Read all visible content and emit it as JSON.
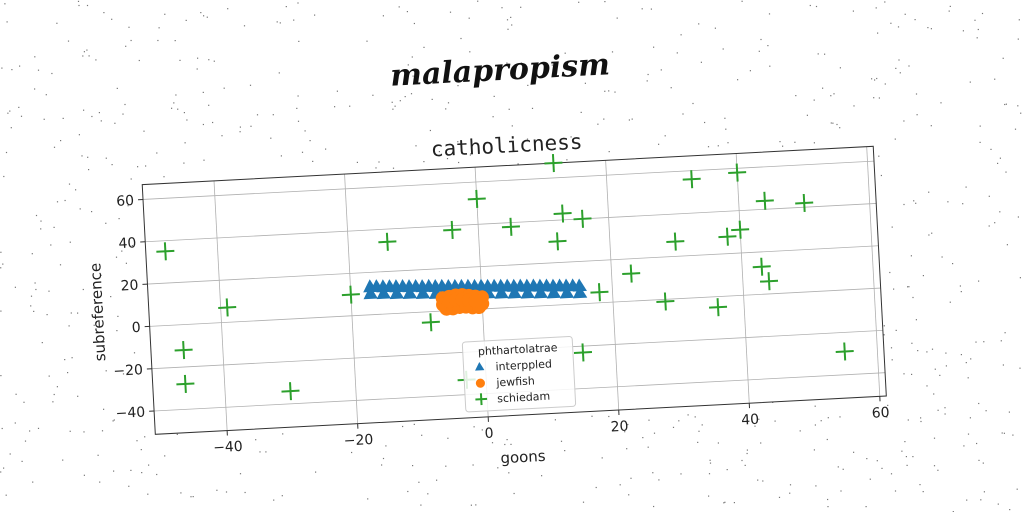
{
  "chart_data": {
    "type": "scatter",
    "suptitle": "malapropism",
    "title": "catholicness",
    "xlabel": "goons",
    "ylabel": "subreference",
    "xlim": [
      -51,
      61
    ],
    "ylim": [
      -51,
      67
    ],
    "xticks": [
      -40,
      -20,
      0,
      20,
      40,
      60
    ],
    "yticks": [
      -40,
      -20,
      0,
      20,
      40,
      60
    ],
    "grid": true,
    "legend": {
      "title": "phthartolatrae",
      "placement": "lower center"
    },
    "series": [
      {
        "name": "interppled",
        "marker": "triangle",
        "color": "#1f77b4",
        "x": [
          -17,
          -16,
          -15,
          -14,
          -13,
          -12,
          -11,
          -10,
          -9,
          -8,
          -7,
          -6,
          -5,
          -4,
          -3,
          -2,
          -1,
          0,
          1,
          2,
          3,
          4,
          5,
          6,
          7,
          8,
          9,
          10,
          11,
          12,
          13,
          14,
          15,
          -17,
          -15,
          -13,
          -11,
          -9,
          -7,
          -5,
          -3,
          -1,
          1,
          3,
          5,
          7,
          9,
          11,
          13,
          15
        ],
        "y": [
          13.0,
          12.9,
          12.7,
          12.6,
          12.4,
          12.3,
          12.1,
          12.0,
          11.8,
          11.7,
          11.5,
          11.4,
          11.2,
          11.1,
          10.9,
          10.8,
          10.6,
          10.5,
          10.3,
          10.2,
          10.0,
          9.9,
          9.7,
          9.6,
          9.4,
          9.3,
          9.1,
          9.0,
          8.8,
          8.7,
          8.5,
          8.4,
          8.2,
          9.8,
          9.5,
          9.2,
          8.9,
          8.6,
          8.3,
          8.0,
          7.7,
          7.4,
          7.1,
          6.8,
          6.5,
          6.2,
          5.9,
          5.6,
          5.3,
          5.0
        ]
      },
      {
        "name": "jewfish",
        "marker": "circle",
        "color": "#ff7f0e",
        "x": [
          -6,
          -5,
          -4,
          -3,
          -2,
          -1,
          0,
          -6,
          -5,
          -4,
          -3,
          -2,
          -1,
          0,
          -5.5,
          -4.5,
          -3.5,
          -2.5,
          -1.5,
          -0.5,
          -5,
          -4,
          -3,
          -2,
          -1
        ],
        "y": [
          6,
          6.5,
          7,
          7,
          6.5,
          6,
          5.5,
          3,
          3.5,
          4,
          4,
          3.5,
          3,
          2.5,
          1,
          1,
          1.5,
          1.5,
          1,
          1,
          4.5,
          5,
          5,
          4.5,
          4
        ]
      },
      {
        "name": "schiedam",
        "marker": "plus",
        "color": "#2ca02c",
        "x": [
          -48,
          -39,
          -20,
          -14,
          -4,
          0,
          5,
          12,
          13,
          12,
          16,
          23,
          18,
          28,
          30,
          33,
          36,
          38,
          40,
          40,
          43,
          44,
          44,
          50,
          54,
          55,
          -46,
          -46,
          -30,
          -8,
          -3,
          15
        ],
        "y": [
          35,
          7,
          10,
          34,
          38,
          52,
          38,
          67,
          43,
          30,
          40,
          13,
          5,
          -1,
          27,
          56,
          -5,
          28,
          58,
          31,
          13,
          44,
          6,
          42,
          77,
          -29,
          -12,
          -28,
          -34,
          -5,
          -33,
          -23
        ]
      }
    ]
  }
}
